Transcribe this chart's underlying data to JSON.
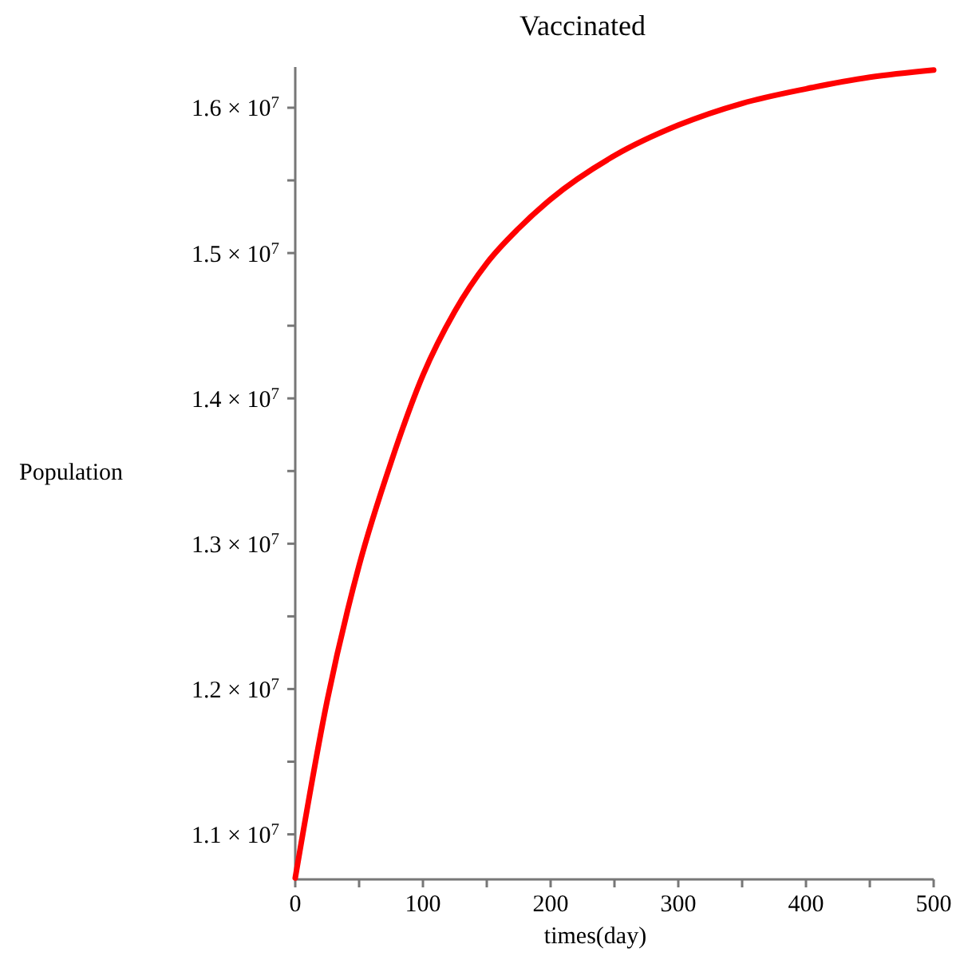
{
  "chart_data": {
    "type": "line",
    "title": "Vaccinated",
    "xlabel": "times(day)",
    "ylabel": "Population",
    "x": [
      0,
      25,
      50,
      75,
      100,
      125,
      150,
      175,
      200,
      250,
      300,
      350,
      400,
      450,
      500
    ],
    "series": [
      {
        "color": "#ff0000",
        "values": [
          10700000,
          11920000,
          12850000,
          13560000,
          14160000,
          14600000,
          14930000,
          15170000,
          15370000,
          15670000,
          15880000,
          16030000,
          16130000,
          16210000,
          16260000
        ]
      }
    ],
    "xlim": [
      0,
      500
    ],
    "ylim": [
      10690000,
      16280000
    ],
    "xticks": [
      0,
      {
        "value": 50,
        "label": null
      },
      100,
      {
        "value": 150,
        "label": null
      },
      200,
      {
        "value": 250,
        "label": null
      },
      300,
      {
        "value": 350,
        "label": null
      },
      400,
      {
        "value": 450,
        "label": null
      },
      500
    ],
    "yticks": [
      {
        "value": 11000000,
        "label": "1.1 × 10$^{7}$"
      },
      {
        "value": 11500000,
        "label": null
      },
      {
        "value": 12000000,
        "label": "1.2 × 10$^{7}$"
      },
      {
        "value": 12500000,
        "label": null
      },
      {
        "value": 13000000,
        "label": "1.3 × 10$^{7}$"
      },
      {
        "value": 13500000,
        "label": null
      },
      {
        "value": 14000000,
        "label": "1.4 × 10$^{7}$"
      },
      {
        "value": 14500000,
        "label": null
      },
      {
        "value": 15000000,
        "label": "1.5 × 10$^{7}$"
      },
      {
        "value": 15500000,
        "label": null
      },
      {
        "value": 16000000,
        "label": "1.6 × 10$^{7}$"
      }
    ],
    "grid": false,
    "line_style": "solid",
    "marker": "none"
  }
}
